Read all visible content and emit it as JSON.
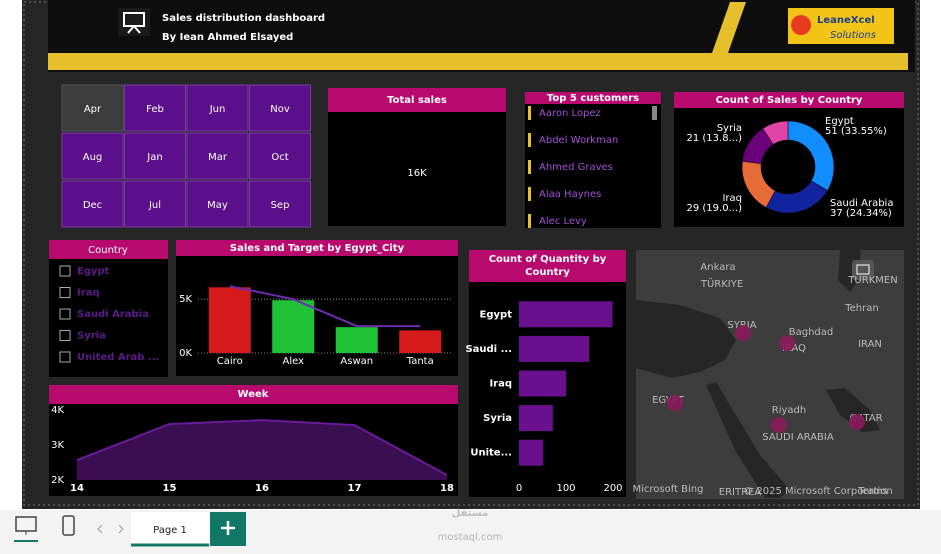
{
  "header": {
    "title": "Sales distribution dashboard",
    "subtitle": "By Iean Ahmed Elsayed",
    "logo": "LeaneXcel",
    "logo_sub": "Solutions"
  },
  "months": {
    "items": [
      "Apr",
      "Feb",
      "Jun",
      "Nov",
      "Aug",
      "Jan",
      "Mar",
      "Oct",
      "Dec",
      "Jul",
      "May",
      "Sep"
    ],
    "selected": 0
  },
  "card": {
    "title": "Total sales",
    "value": "16K"
  },
  "top_customers": {
    "title": "Top 5 customers",
    "items": [
      "Aaron Lopez",
      "Abdel Workman",
      "Ahmed Graves",
      "Alaa Haynes",
      "Alec Levy"
    ]
  },
  "country_slicer": {
    "title": "Country",
    "items": [
      "Egypt",
      "Iraq",
      "Saudi Arabia",
      "Syria",
      "United Arab ..."
    ]
  },
  "map": {
    "labels": [
      "Ankara",
      "TÜRKIYE",
      "TURKMEN",
      "Tehran",
      "SYRIA",
      "Baghdad",
      "IRAN",
      "IRAQ",
      "EGYPT",
      "Riyadh",
      "SAUDI ARABIA",
      "QATAR",
      "ERITREA",
      "Microsoft Bing",
      "© 2025 Microsoft Corporation",
      "Terms"
    ]
  },
  "tabs": {
    "page": "Page 1"
  },
  "watermark": {
    "arabic": "مستقل",
    "latin": "mostaql.com"
  },
  "chart_data": [
    {
      "type": "pie",
      "title": "Count of Sales by Country",
      "categories": [
        "Egypt",
        "Saudi Arabia",
        "Iraq",
        "Syria",
        null
      ],
      "values": [
        51,
        37,
        29,
        21,
        14
      ],
      "value_labels": [
        "51 (33.55%)",
        "37 (24.34%)",
        "29 (19.0...)",
        "21 (13.8...)",
        null
      ],
      "colors": [
        "#118dff",
        "#12239e",
        "#e66c37",
        "#6b007b",
        "#e044a7"
      ],
      "hole": true
    },
    {
      "type": "combo",
      "title": "Sales and Target by Egypt_City",
      "categories": [
        "Cairo",
        "Alex",
        "Aswan",
        "Tanta"
      ],
      "series": [
        {
          "kind": "bar",
          "values": [
            6100,
            4900,
            2400,
            2100
          ],
          "colors": [
            "#d41a1a",
            "#1fc236",
            "#1fc236",
            "#d41a1a"
          ]
        },
        {
          "kind": "line",
          "values": [
            6200,
            5000,
            2500,
            2500
          ],
          "color": "#6a2db0"
        }
      ],
      "ylim": [
        0,
        6500
      ],
      "yticks": [
        {
          "value": 0,
          "label": "0K"
        },
        {
          "value": 5000,
          "label": "5K"
        }
      ],
      "grid": true
    },
    {
      "type": "area",
      "title": "Week",
      "x": [
        14,
        15,
        16,
        17,
        18
      ],
      "values": [
        2570,
        3600,
        3710,
        3570,
        2140
      ],
      "color": "#6a1a9a",
      "fill": "#3a0f52",
      "xlim": [
        14,
        18
      ],
      "xticks": [
        14,
        15,
        16,
        17,
        18
      ],
      "ylim": [
        2000,
        4000
      ],
      "yticks": [
        {
          "value": 2000,
          "label": "2K"
        },
        {
          "value": 3000,
          "label": "3K"
        },
        {
          "value": 4000,
          "label": "4K"
        }
      ]
    },
    {
      "type": "barh",
      "title": "Count of Quantity by Country",
      "categories": [
        "Egypt",
        "Saudi ...",
        "Iraq",
        "Syria",
        "Unite..."
      ],
      "values": [
        199,
        149,
        100,
        72,
        51
      ],
      "color": "#6a0f8e",
      "xlim": [
        0,
        200
      ],
      "xticks": [
        0,
        100,
        200
      ]
    }
  ]
}
